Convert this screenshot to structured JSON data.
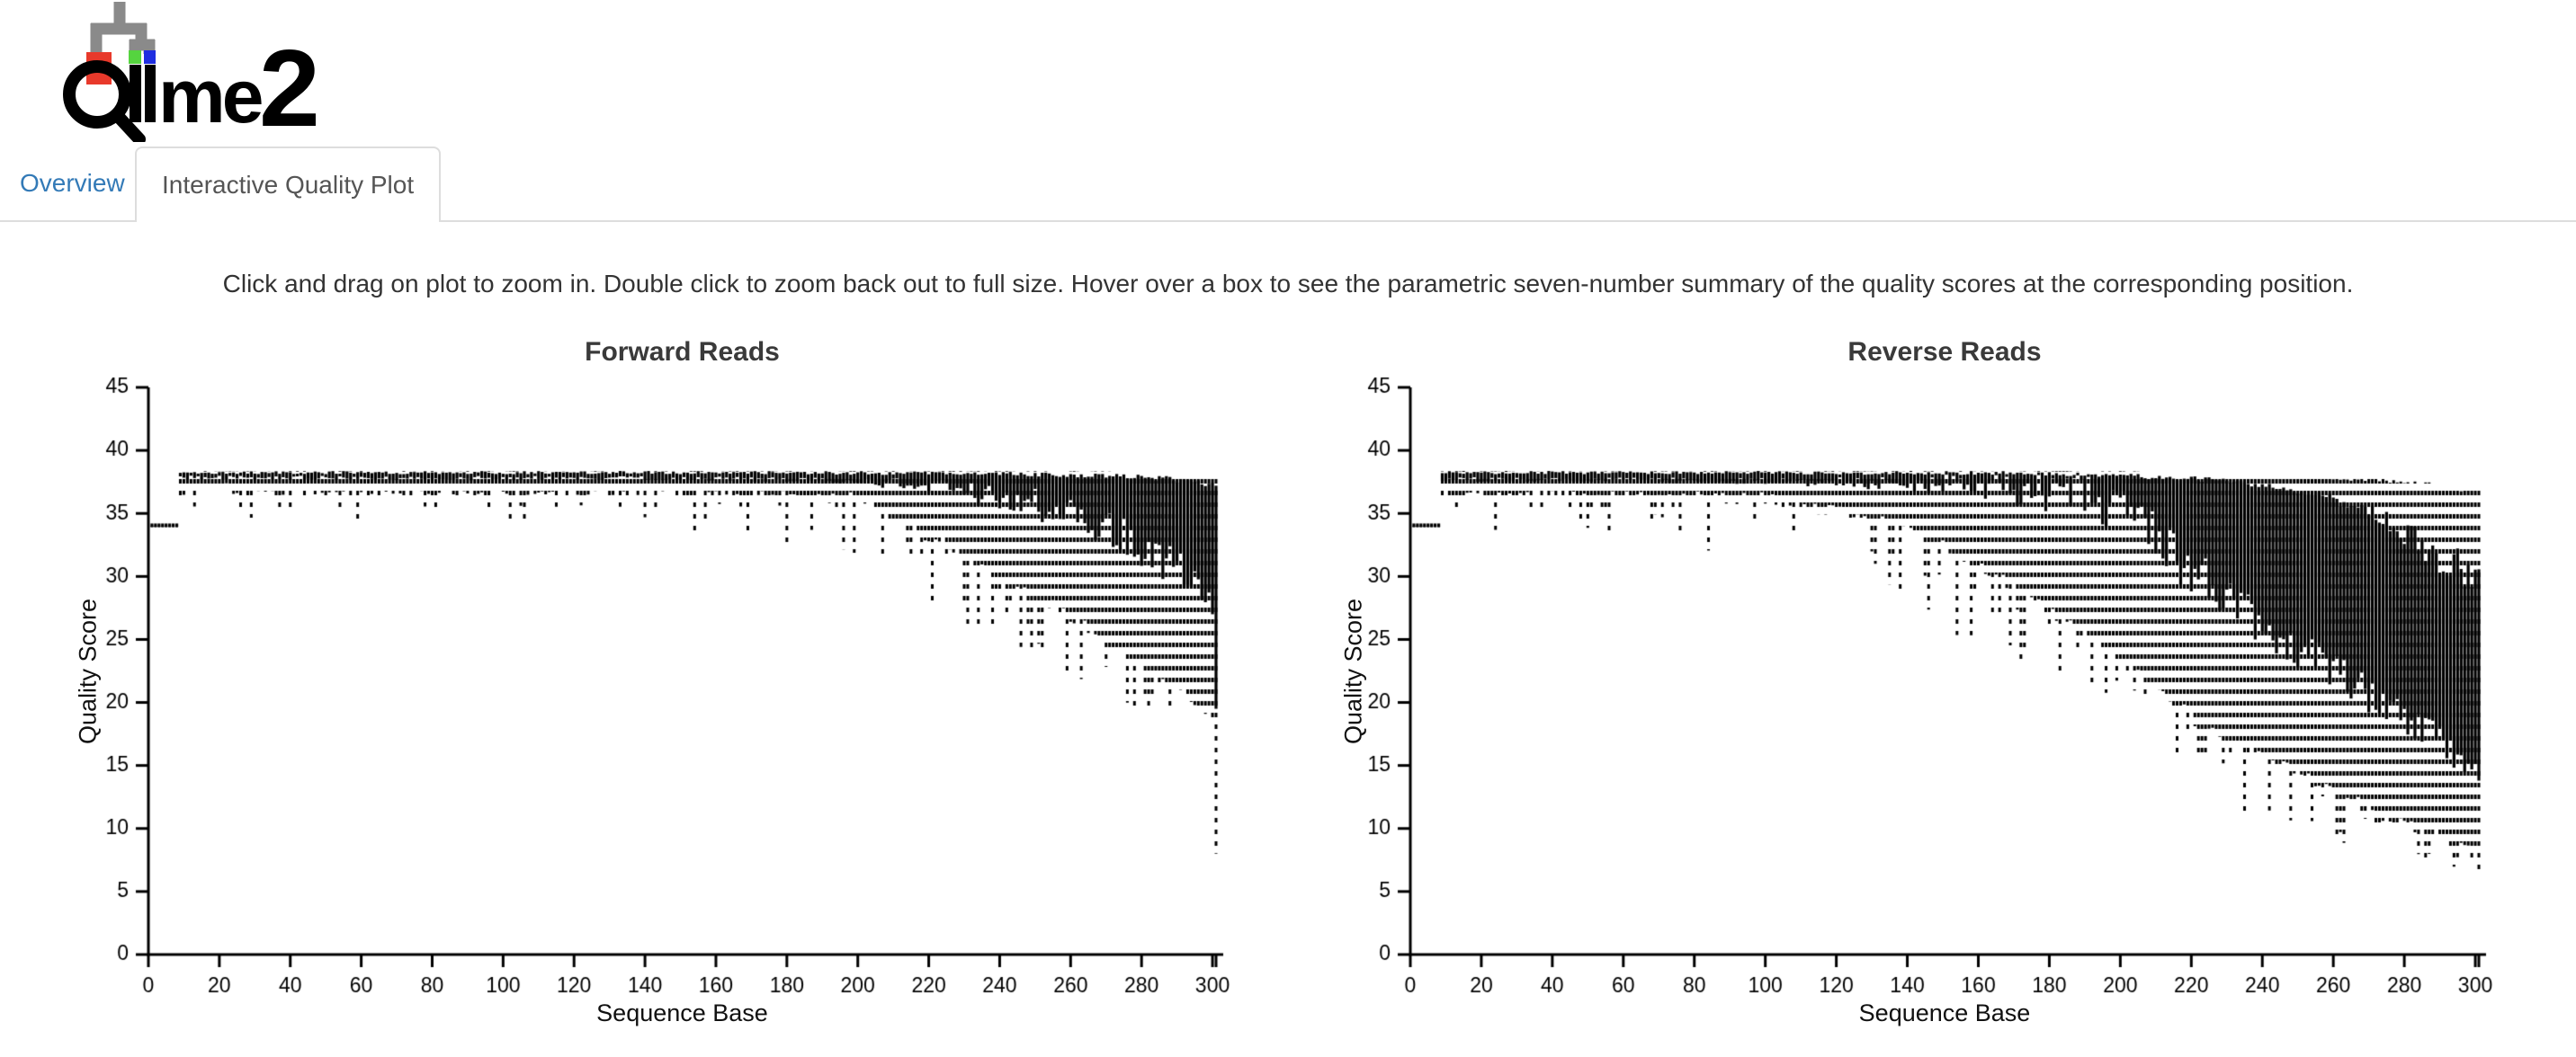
{
  "logo": {
    "text": "qiime 2",
    "colors": {
      "tree_gray": "#8a8a8a",
      "dot_red": "#e8392b",
      "dot_green": "#55d43f",
      "dot_blue": "#1f2ee0",
      "text_black": "#000000"
    }
  },
  "tabs": [
    {
      "label": "Overview",
      "active": false
    },
    {
      "label": "Interactive Quality Plot",
      "active": true
    }
  ],
  "tab_colors": {
    "link_blue": "#337ab7",
    "active_text": "#555555",
    "border": "#dddddd"
  },
  "instructions": "Click and drag on plot to zoom in. Double click to zoom back out to full size. Hover over a box to see the parametric seven-number summary of the quality scores at the corresponding position.",
  "chart_data": [
    {
      "type": "boxplot",
      "title": "Forward Reads",
      "xlabel": "Sequence Base",
      "ylabel": "Quality Score",
      "xlim": [
        0,
        301
      ],
      "ylim": [
        0,
        45
      ],
      "xticks": [
        0,
        20,
        40,
        60,
        80,
        100,
        120,
        140,
        160,
        180,
        200,
        220,
        240,
        260,
        280,
        300
      ],
      "yticks": [
        0,
        5,
        10,
        15,
        20,
        25,
        30,
        35,
        40,
        45
      ],
      "end_tick": 301,
      "grid": false,
      "box_color": "#000000",
      "whisker_style": "dashed",
      "background": "#ffffff",
      "seed": 11,
      "summary_columns": [
        "base",
        "p2",
        "p25",
        "p75",
        "p98",
        "dip_prob",
        "dip_depth"
      ],
      "summary_anchors": [
        [
          1,
          33.9,
          33.95,
          34.2,
          34.25,
          0,
          0
        ],
        [
          8,
          33.9,
          33.95,
          34.2,
          34.25,
          0,
          0
        ],
        [
          9,
          36.9,
          37.85,
          38.25,
          38.3,
          0.5,
          1.6
        ],
        [
          150,
          36.8,
          37.8,
          38.25,
          38.3,
          0.55,
          3.0
        ],
        [
          200,
          36.2,
          37.6,
          38.2,
          38.3,
          0.7,
          4.5
        ],
        [
          220,
          33.5,
          37.2,
          38.2,
          38.3,
          0.9,
          5.0
        ],
        [
          235,
          30.5,
          36.6,
          38.2,
          38.3,
          1,
          5.0
        ],
        [
          250,
          28.5,
          35.8,
          38.1,
          38.3,
          1,
          5.0
        ],
        [
          265,
          26.0,
          34.5,
          38.0,
          38.3,
          1,
          4.5
        ],
        [
          280,
          23.0,
          32.5,
          37.9,
          38.2,
          1,
          4.0
        ],
        [
          293,
          20.5,
          30.5,
          37.6,
          38.1,
          1,
          2.5
        ],
        [
          299,
          19.0,
          29.2,
          37.4,
          38.0,
          1,
          1.5
        ],
        [
          300,
          18.5,
          27.0,
          37.4,
          38.0,
          0,
          0
        ],
        [
          301,
          8.0,
          19.5,
          37.2,
          38.0,
          0,
          0
        ]
      ]
    },
    {
      "type": "boxplot",
      "title": "Reverse Reads",
      "xlabel": "Sequence Base",
      "ylabel": "Quality Score",
      "xlim": [
        0,
        301
      ],
      "ylim": [
        0,
        45
      ],
      "xticks": [
        0,
        20,
        40,
        60,
        80,
        100,
        120,
        140,
        160,
        180,
        200,
        220,
        240,
        260,
        280,
        300
      ],
      "yticks": [
        0,
        5,
        10,
        15,
        20,
        25,
        30,
        35,
        40,
        45
      ],
      "end_tick": 301,
      "grid": false,
      "box_color": "#000000",
      "whisker_style": "dashed",
      "background": "#ffffff",
      "seed": 42,
      "summary_columns": [
        "base",
        "p2",
        "p25",
        "p75",
        "p98",
        "dip_prob",
        "dip_depth"
      ],
      "summary_anchors": [
        [
          1,
          33.9,
          33.95,
          34.2,
          34.25,
          0,
          0
        ],
        [
          8,
          33.9,
          33.95,
          34.2,
          34.25,
          0,
          0
        ],
        [
          9,
          36.6,
          37.7,
          38.25,
          38.3,
          0.6,
          3.0
        ],
        [
          100,
          36.2,
          37.6,
          38.25,
          38.3,
          0.65,
          4.0
        ],
        [
          140,
          34.0,
          37.4,
          38.2,
          38.3,
          0.8,
          5.5
        ],
        [
          165,
          30.0,
          37.2,
          38.2,
          38.3,
          0.95,
          7.0
        ],
        [
          185,
          26.5,
          36.8,
          38.1,
          38.3,
          1,
          7.0
        ],
        [
          200,
          23.5,
          35.5,
          38.0,
          38.3,
          1,
          6.5
        ],
        [
          215,
          20.0,
          32.0,
          37.8,
          38.2,
          1,
          6.0
        ],
        [
          230,
          17.0,
          28.5,
          37.6,
          38.2,
          1,
          5.5
        ],
        [
          245,
          15.0,
          25.5,
          37.2,
          38.0,
          1,
          5.0
        ],
        [
          260,
          13.0,
          22.5,
          36.2,
          37.8,
          1,
          4.0
        ],
        [
          275,
          11.0,
          20.0,
          34.5,
          37.6,
          1,
          3.0
        ],
        [
          290,
          9.5,
          17.0,
          31.5,
          37.2,
          1,
          2.0
        ],
        [
          301,
          8.0,
          14.5,
          30.0,
          36.8,
          1,
          1.0
        ]
      ]
    }
  ]
}
